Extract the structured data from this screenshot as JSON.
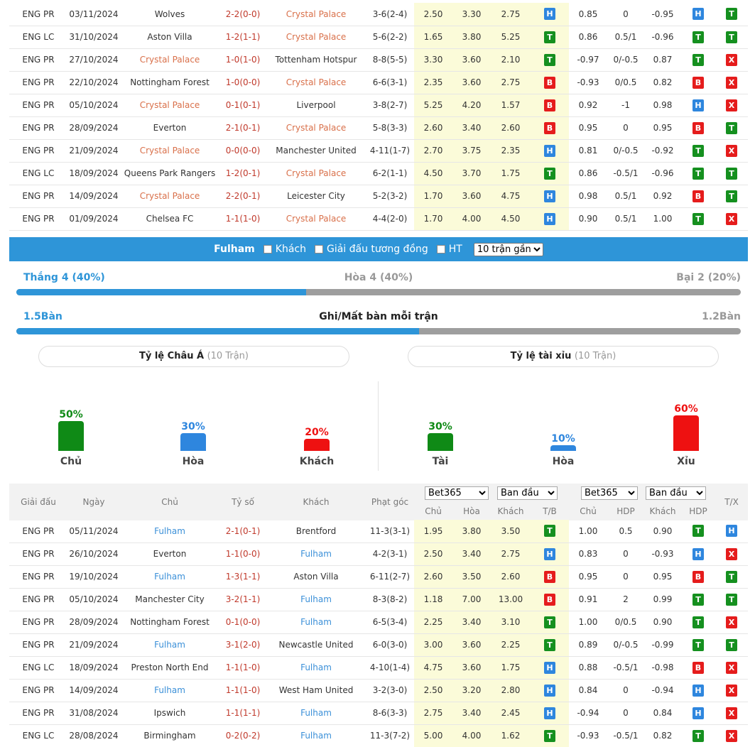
{
  "top_matches": [
    {
      "league": "ENG PR",
      "date": "03/11/2024",
      "home": "Wolves",
      "home_hl": false,
      "score": "2-2(0-0)",
      "away": "Crystal Palace",
      "away_hl": true,
      "corners": "3-6(2-4)",
      "o1": "2.50",
      "o2": "3.30",
      "o3": "2.75",
      "tb": "H",
      "h1": "0.85",
      "h2": "0",
      "h3": "-0.95",
      "hdp": "H",
      "tx": "T"
    },
    {
      "league": "ENG LC",
      "date": "31/10/2024",
      "home": "Aston Villa",
      "home_hl": false,
      "score": "1-2(1-1)",
      "away": "Crystal Palace",
      "away_hl": true,
      "corners": "5-6(2-2)",
      "o1": "1.65",
      "o2": "3.80",
      "o3": "5.25",
      "tb": "T",
      "h1": "0.86",
      "h2": "0.5/1",
      "h3": "-0.96",
      "hdp": "T",
      "tx": "T"
    },
    {
      "league": "ENG PR",
      "date": "27/10/2024",
      "home": "Crystal Palace",
      "home_hl": true,
      "score": "1-0(1-0)",
      "away": "Tottenham Hotspur",
      "away_hl": false,
      "corners": "8-8(5-5)",
      "o1": "3.30",
      "o2": "3.60",
      "o3": "2.10",
      "tb": "T",
      "h1": "-0.97",
      "h2": "0/-0.5",
      "h3": "0.87",
      "hdp": "T",
      "tx": "X"
    },
    {
      "league": "ENG PR",
      "date": "22/10/2024",
      "home": "Nottingham Forest",
      "home_hl": false,
      "score": "1-0(0-0)",
      "away": "Crystal Palace",
      "away_hl": true,
      "corners": "6-6(3-1)",
      "o1": "2.35",
      "o2": "3.60",
      "o3": "2.75",
      "tb": "B",
      "h1": "-0.93",
      "h2": "0/0.5",
      "h3": "0.82",
      "hdp": "B",
      "tx": "X"
    },
    {
      "league": "ENG PR",
      "date": "05/10/2024",
      "home": "Crystal Palace",
      "home_hl": true,
      "score": "0-1(0-1)",
      "away": "Liverpool",
      "away_hl": false,
      "corners": "3-8(2-7)",
      "o1": "5.25",
      "o2": "4.20",
      "o3": "1.57",
      "tb": "B",
      "h1": "0.92",
      "h2": "-1",
      "h3": "0.98",
      "hdp": "H",
      "tx": "X"
    },
    {
      "league": "ENG PR",
      "date": "28/09/2024",
      "home": "Everton",
      "home_hl": false,
      "score": "2-1(0-1)",
      "away": "Crystal Palace",
      "away_hl": true,
      "corners": "5-8(3-3)",
      "o1": "2.60",
      "o2": "3.40",
      "o3": "2.60",
      "tb": "B",
      "h1": "0.95",
      "h2": "0",
      "h3": "0.95",
      "hdp": "B",
      "tx": "T"
    },
    {
      "league": "ENG PR",
      "date": "21/09/2024",
      "home": "Crystal Palace",
      "home_hl": true,
      "score": "0-0(0-0)",
      "away": "Manchester United",
      "away_hl": false,
      "corners": "4-11(1-7)",
      "o1": "2.70",
      "o2": "3.75",
      "o3": "2.35",
      "tb": "H",
      "h1": "0.81",
      "h2": "0/-0.5",
      "h3": "-0.92",
      "hdp": "T",
      "tx": "X"
    },
    {
      "league": "ENG LC",
      "date": "18/09/2024",
      "home": "Queens Park Rangers",
      "home_hl": false,
      "score": "1-2(0-1)",
      "away": "Crystal Palace",
      "away_hl": true,
      "corners": "6-2(1-1)",
      "o1": "4.50",
      "o2": "3.70",
      "o3": "1.75",
      "tb": "T",
      "h1": "0.86",
      "h2": "-0.5/1",
      "h3": "-0.96",
      "hdp": "T",
      "tx": "T"
    },
    {
      "league": "ENG PR",
      "date": "14/09/2024",
      "home": "Crystal Palace",
      "home_hl": true,
      "score": "2-2(0-1)",
      "away": "Leicester City",
      "away_hl": false,
      "corners": "5-2(3-2)",
      "o1": "1.70",
      "o2": "3.60",
      "o3": "4.75",
      "tb": "H",
      "h1": "0.98",
      "h2": "0.5/1",
      "h3": "0.92",
      "hdp": "B",
      "tx": "T"
    },
    {
      "league": "ENG PR",
      "date": "01/09/2024",
      "home": "Chelsea FC",
      "home_hl": false,
      "score": "1-1(1-0)",
      "away": "Crystal Palace",
      "away_hl": true,
      "corners": "4-4(2-0)",
      "o1": "1.70",
      "o2": "4.00",
      "o3": "4.50",
      "tb": "H",
      "h1": "0.90",
      "h2": "0.5/1",
      "h3": "1.00",
      "hdp": "T",
      "tx": "X"
    }
  ],
  "filter": {
    "team": "Fulham",
    "away_label": "Khách",
    "same_league_label": "Giải đấu tương đồng",
    "ht_label": "HT",
    "recent_selected": "10 trận gần"
  },
  "record": {
    "win": "Thắng 4 (40%)",
    "draw": "Hòa 4 (40%)",
    "loss": "Bại 2 (20%)",
    "win_fraction": 0.4
  },
  "goals": {
    "for": "1.5Bàn",
    "title": "Ghi/Mất bàn mỗi trận",
    "against": "1.2Bàn",
    "for_fraction": 0.556
  },
  "asian": {
    "title": "Tỷ lệ Châu Á",
    "count": "(10 Trận)",
    "bars": [
      {
        "pct": "50%",
        "label": "Chủ",
        "value": 50,
        "color": "#0f8a16"
      },
      {
        "pct": "30%",
        "label": "Hòa",
        "value": 30,
        "color": "#2e86de"
      },
      {
        "pct": "20%",
        "label": "Khách",
        "value": 20,
        "color": "#ee1111"
      }
    ]
  },
  "overunder": {
    "title": "Tỷ lệ tài xỉu",
    "count": "(10 Trận)",
    "bars": [
      {
        "pct": "30%",
        "label": "Tài",
        "value": 30,
        "color": "#0f8a16"
      },
      {
        "pct": "10%",
        "label": "Hòa",
        "value": 10,
        "color": "#2e86de"
      },
      {
        "pct": "60%",
        "label": "Xỉu",
        "value": 60,
        "color": "#ee1111"
      }
    ]
  },
  "header": {
    "league": "Giải đấu",
    "date": "Ngày",
    "home": "Chủ",
    "score": "Tỷ số",
    "away": "Khách",
    "corners": "Phạt góc",
    "bookmaker1": "Bet365",
    "type1": "Ban đầu",
    "bookmaker2": "Bet365",
    "type2": "Ban đầu",
    "odds_home": "Chủ",
    "odds_draw": "Hòa",
    "odds_away": "Khách",
    "tb": "T/B",
    "hdp_home": "Chủ",
    "hdp_line": "HDP",
    "hdp_away": "Khách",
    "hdp": "HDP",
    "tx": "T/X"
  },
  "bottom_matches": [
    {
      "league": "ENG PR",
      "date": "05/11/2024",
      "home": "Fulham",
      "home_hl": true,
      "score": "2-1(0-1)",
      "away": "Brentford",
      "away_hl": false,
      "corners": "11-3(3-1)",
      "o1": "1.95",
      "o2": "3.80",
      "o3": "3.50",
      "tb": "T",
      "h1": "1.00",
      "h2": "0.5",
      "h3": "0.90",
      "hdp": "T",
      "tx": "H"
    },
    {
      "league": "ENG PR",
      "date": "26/10/2024",
      "home": "Everton",
      "home_hl": false,
      "score": "1-1(0-0)",
      "away": "Fulham",
      "away_hl": true,
      "corners": "4-2(3-1)",
      "o1": "2.50",
      "o2": "3.40",
      "o3": "2.75",
      "tb": "H",
      "h1": "0.83",
      "h2": "0",
      "h3": "-0.93",
      "hdp": "H",
      "tx": "X"
    },
    {
      "league": "ENG PR",
      "date": "19/10/2024",
      "home": "Fulham",
      "home_hl": true,
      "score": "1-3(1-1)",
      "away": "Aston Villa",
      "away_hl": false,
      "corners": "6-11(2-7)",
      "o1": "2.60",
      "o2": "3.50",
      "o3": "2.60",
      "tb": "B",
      "h1": "0.95",
      "h2": "0",
      "h3": "0.95",
      "hdp": "B",
      "tx": "T"
    },
    {
      "league": "ENG PR",
      "date": "05/10/2024",
      "home": "Manchester City",
      "home_hl": false,
      "score": "3-2(1-1)",
      "away": "Fulham",
      "away_hl": true,
      "corners": "8-3(8-2)",
      "o1": "1.18",
      "o2": "7.00",
      "o3": "13.00",
      "tb": "B",
      "h1": "0.91",
      "h2": "2",
      "h3": "0.99",
      "hdp": "T",
      "tx": "T"
    },
    {
      "league": "ENG PR",
      "date": "28/09/2024",
      "home": "Nottingham Forest",
      "home_hl": false,
      "score": "0-1(0-0)",
      "away": "Fulham",
      "away_hl": true,
      "corners": "6-5(3-4)",
      "o1": "2.25",
      "o2": "3.40",
      "o3": "3.10",
      "tb": "T",
      "h1": "1.00",
      "h2": "0/0.5",
      "h3": "0.90",
      "hdp": "T",
      "tx": "X"
    },
    {
      "league": "ENG PR",
      "date": "21/09/2024",
      "home": "Fulham",
      "home_hl": true,
      "score": "3-1(2-0)",
      "away": "Newcastle United",
      "away_hl": false,
      "corners": "6-0(3-0)",
      "o1": "3.00",
      "o2": "3.60",
      "o3": "2.25",
      "tb": "T",
      "h1": "0.89",
      "h2": "0/-0.5",
      "h3": "-0.99",
      "hdp": "T",
      "tx": "T"
    },
    {
      "league": "ENG LC",
      "date": "18/09/2024",
      "home": "Preston North End",
      "home_hl": false,
      "score": "1-1(1-0)",
      "away": "Fulham",
      "away_hl": true,
      "corners": "4-10(1-4)",
      "o1": "4.75",
      "o2": "3.60",
      "o3": "1.75",
      "tb": "H",
      "h1": "0.88",
      "h2": "-0.5/1",
      "h3": "-0.98",
      "hdp": "B",
      "tx": "X"
    },
    {
      "league": "ENG PR",
      "date": "14/09/2024",
      "home": "Fulham",
      "home_hl": true,
      "score": "1-1(1-0)",
      "away": "West Ham United",
      "away_hl": false,
      "corners": "3-2(3-0)",
      "o1": "2.50",
      "o2": "3.20",
      "o3": "2.80",
      "tb": "H",
      "h1": "0.84",
      "h2": "0",
      "h3": "-0.94",
      "hdp": "H",
      "tx": "X"
    },
    {
      "league": "ENG PR",
      "date": "31/08/2024",
      "home": "Ipswich",
      "home_hl": false,
      "score": "1-1(1-1)",
      "away": "Fulham",
      "away_hl": true,
      "corners": "8-6(3-3)",
      "o1": "2.75",
      "o2": "3.40",
      "o3": "2.45",
      "tb": "H",
      "h1": "-0.94",
      "h2": "0",
      "h3": "0.84",
      "hdp": "H",
      "tx": "X"
    },
    {
      "league": "ENG LC",
      "date": "28/08/2024",
      "home": "Birmingham",
      "home_hl": false,
      "score": "0-2(0-2)",
      "away": "Fulham",
      "away_hl": true,
      "corners": "11-3(7-2)",
      "o1": "5.00",
      "o2": "4.00",
      "o3": "1.62",
      "tb": "T",
      "h1": "-0.93",
      "h2": "-0.5/1",
      "h3": "0.82",
      "hdp": "T",
      "tx": "X"
    }
  ]
}
